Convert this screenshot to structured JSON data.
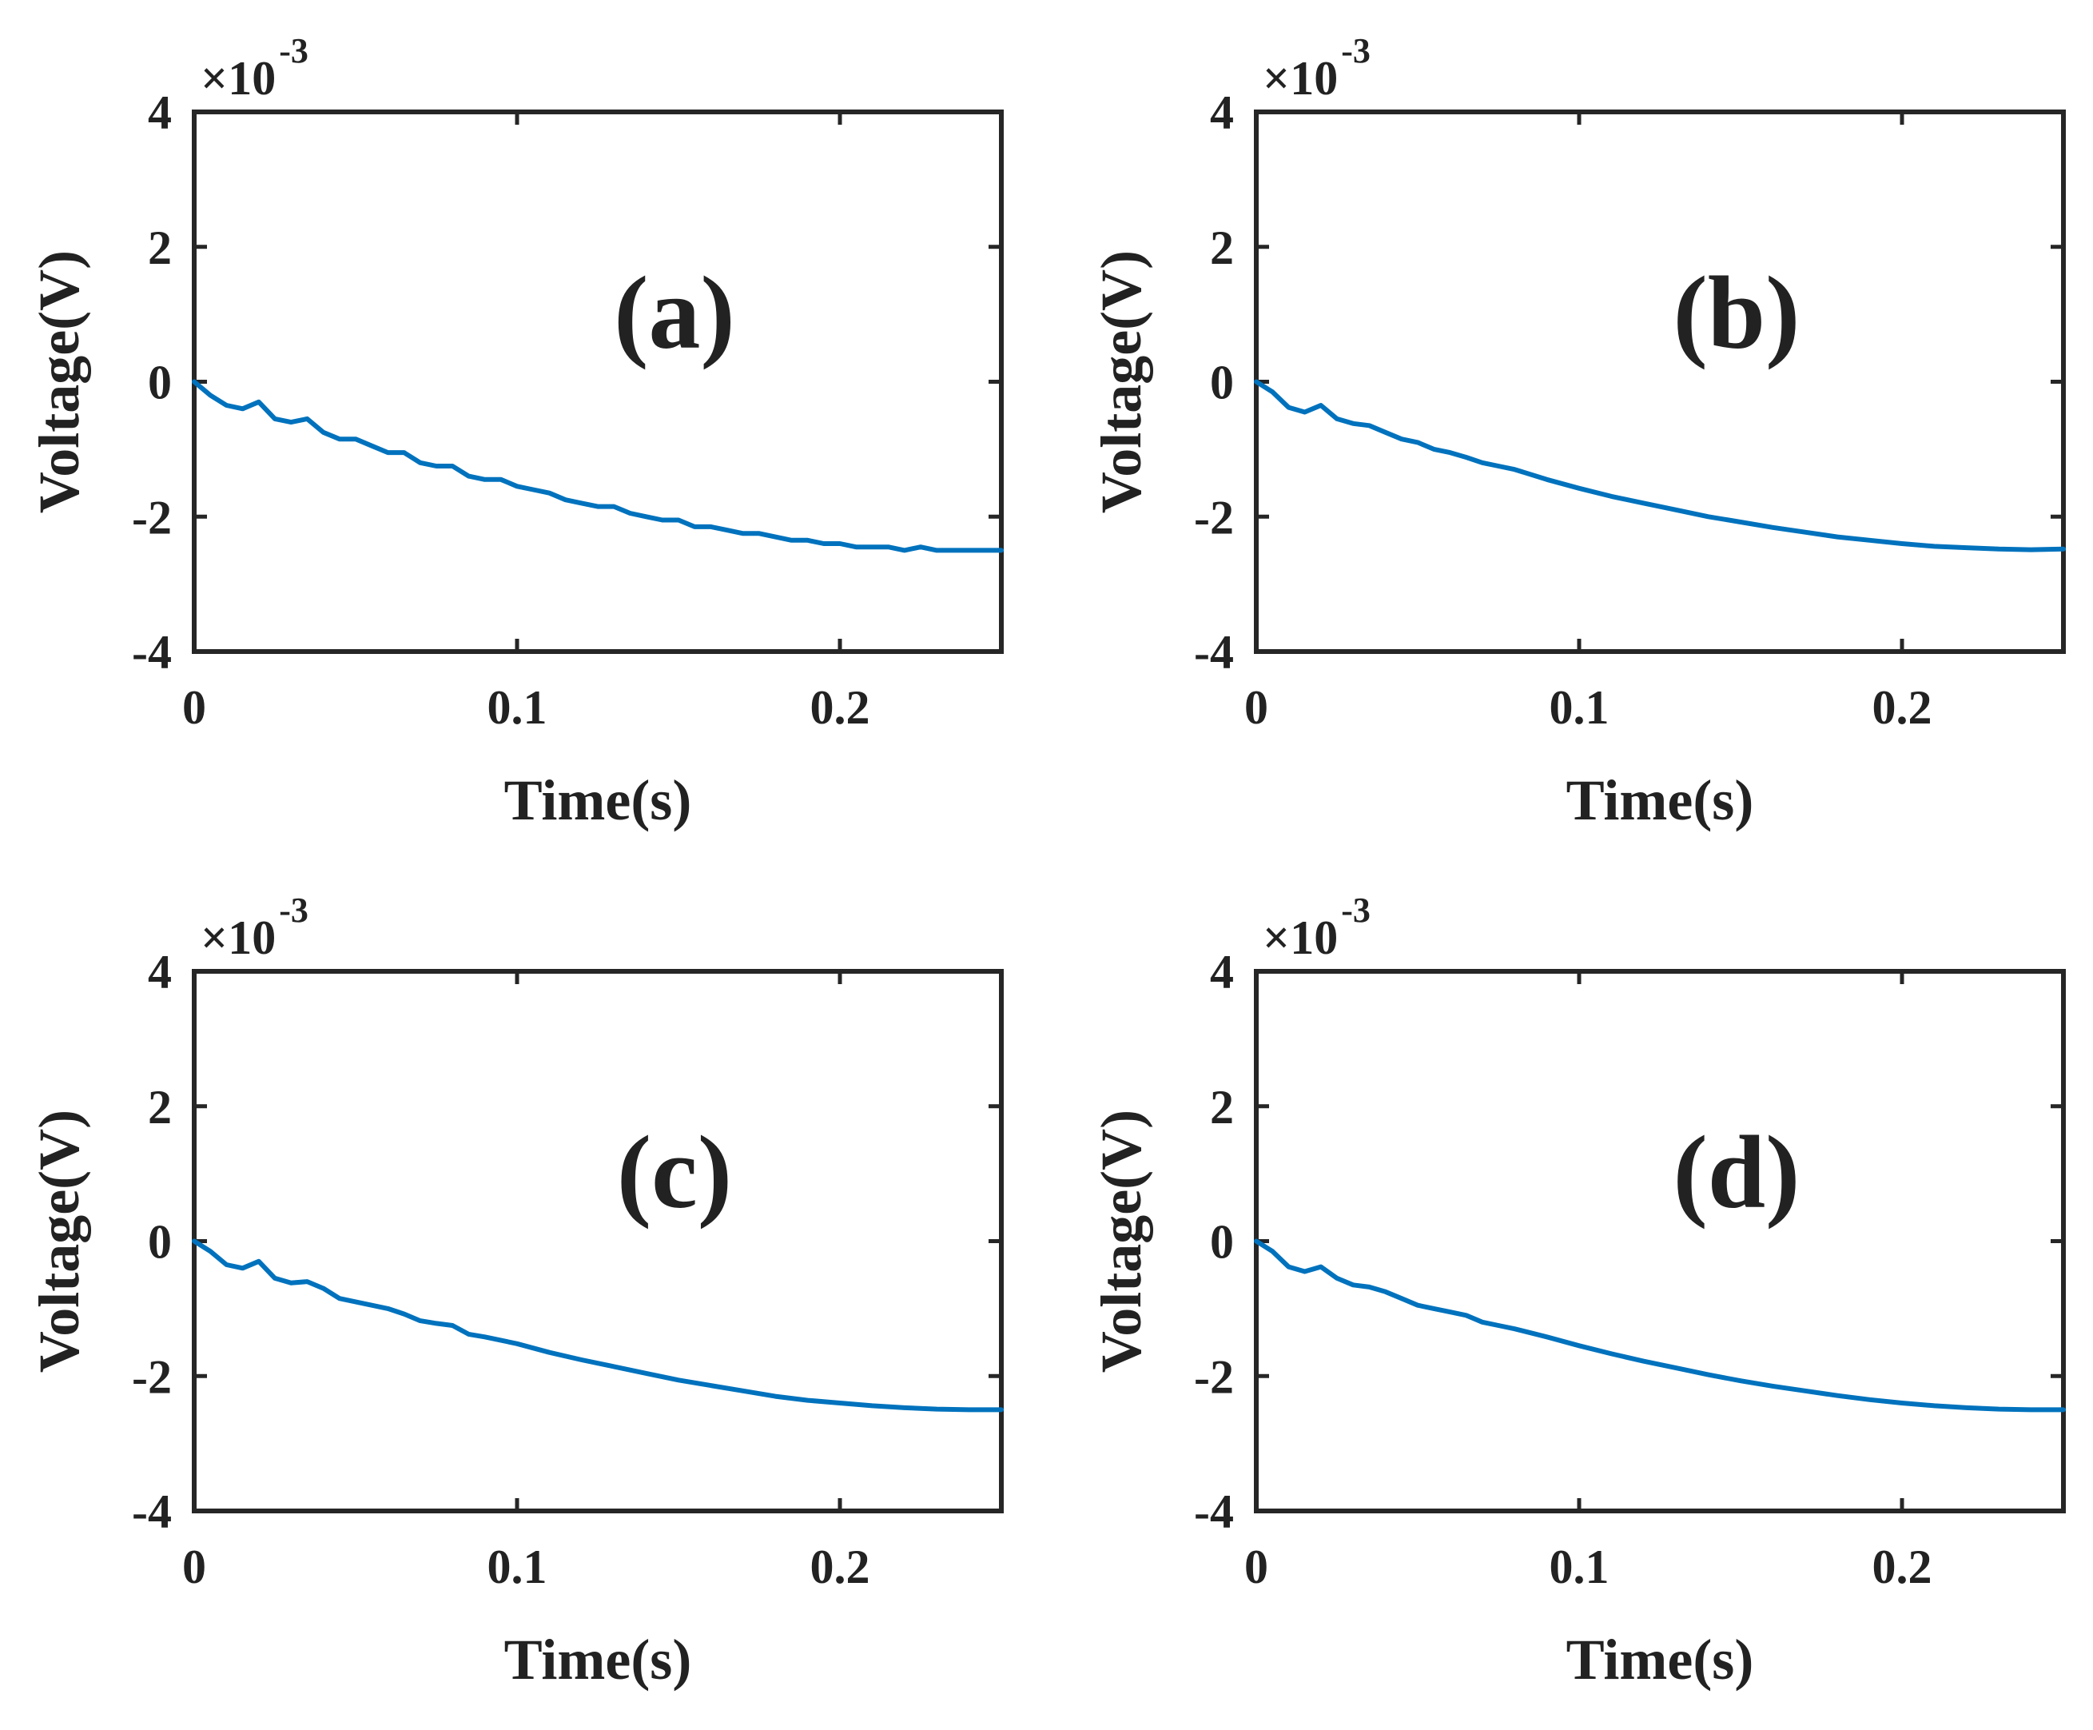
{
  "colors": {
    "series": "#0072BD",
    "axes": "#262626",
    "text": "#222222"
  },
  "chart_data": [
    {
      "type": "line",
      "panel_label": "(a)",
      "xlabel": "Time(s)",
      "ylabel": "Voltage(V)",
      "y_scale_base": "×10",
      "y_scale_exponent": "-3",
      "xlim": [
        0,
        0.25
      ],
      "ylim": [
        -4,
        4
      ],
      "xticks": [
        0,
        0.1,
        0.2
      ],
      "xtick_labels": [
        "0",
        "0.1",
        "0.2"
      ],
      "yticks": [
        4,
        2,
        0,
        -2,
        -4
      ],
      "ytick_labels": [
        "4",
        "2",
        "0",
        "-2",
        "-4"
      ],
      "series": [
        {
          "name": "voltage",
          "x": [
            0,
            0.005,
            0.01,
            0.015,
            0.02,
            0.025,
            0.03,
            0.035,
            0.04,
            0.045,
            0.05,
            0.055,
            0.06,
            0.065,
            0.07,
            0.075,
            0.08,
            0.085,
            0.09,
            0.095,
            0.1,
            0.105,
            0.11,
            0.115,
            0.12,
            0.125,
            0.13,
            0.135,
            0.14,
            0.145,
            0.15,
            0.155,
            0.16,
            0.165,
            0.17,
            0.175,
            0.18,
            0.185,
            0.19,
            0.195,
            0.2,
            0.205,
            0.21,
            0.215,
            0.22,
            0.225,
            0.23,
            0.235,
            0.24,
            0.245,
            0.25
          ],
          "y": [
            0,
            -0.2,
            -0.35,
            -0.4,
            -0.3,
            -0.55,
            -0.6,
            -0.55,
            -0.75,
            -0.85,
            -0.85,
            -0.95,
            -1.05,
            -1.05,
            -1.2,
            -1.25,
            -1.25,
            -1.4,
            -1.45,
            -1.45,
            -1.55,
            -1.6,
            -1.65,
            -1.75,
            -1.8,
            -1.85,
            -1.85,
            -1.95,
            -2.0,
            -2.05,
            -2.05,
            -2.15,
            -2.15,
            -2.2,
            -2.25,
            -2.25,
            -2.3,
            -2.35,
            -2.35,
            -2.4,
            -2.4,
            -2.45,
            -2.45,
            -2.45,
            -2.5,
            -2.45,
            -2.5,
            -2.5,
            -2.5,
            -2.5,
            -2.5
          ]
        }
      ]
    },
    {
      "type": "line",
      "panel_label": "(b)",
      "xlabel": "Time(s)",
      "ylabel": "Voltage(V)",
      "y_scale_base": "×10",
      "y_scale_exponent": "-3",
      "xlim": [
        0,
        0.25
      ],
      "ylim": [
        -4,
        4
      ],
      "xticks": [
        0,
        0.1,
        0.2
      ],
      "xtick_labels": [
        "0",
        "0.1",
        "0.2"
      ],
      "yticks": [
        4,
        2,
        0,
        -2,
        -4
      ],
      "ytick_labels": [
        "4",
        "2",
        "0",
        "-2",
        "-4"
      ],
      "series": [
        {
          "name": "voltage",
          "x": [
            0,
            0.005,
            0.01,
            0.015,
            0.02,
            0.025,
            0.03,
            0.035,
            0.04,
            0.045,
            0.05,
            0.055,
            0.06,
            0.065,
            0.07,
            0.075,
            0.08,
            0.09,
            0.1,
            0.11,
            0.12,
            0.13,
            0.14,
            0.15,
            0.16,
            0.17,
            0.18,
            0.19,
            0.2,
            0.21,
            0.22,
            0.23,
            0.24,
            0.25
          ],
          "y": [
            0,
            -0.15,
            -0.38,
            -0.45,
            -0.35,
            -0.55,
            -0.62,
            -0.65,
            -0.75,
            -0.85,
            -0.9,
            -1.0,
            -1.05,
            -1.12,
            -1.2,
            -1.25,
            -1.3,
            -1.45,
            -1.58,
            -1.7,
            -1.8,
            -1.9,
            -2.0,
            -2.08,
            -2.16,
            -2.23,
            -2.3,
            -2.35,
            -2.4,
            -2.44,
            -2.46,
            -2.48,
            -2.49,
            -2.48
          ]
        }
      ]
    },
    {
      "type": "line",
      "panel_label": "(c)",
      "xlabel": "Time(s)",
      "ylabel": "Voltage(V)",
      "y_scale_base": "×10",
      "y_scale_exponent": "-3",
      "xlim": [
        0,
        0.25
      ],
      "ylim": [
        -4,
        4
      ],
      "xticks": [
        0,
        0.1,
        0.2
      ],
      "xtick_labels": [
        "0",
        "0.1",
        "0.2"
      ],
      "yticks": [
        4,
        2,
        0,
        -2,
        -4
      ],
      "ytick_labels": [
        "4",
        "2",
        "0",
        "-2",
        "-4"
      ],
      "series": [
        {
          "name": "voltage",
          "x": [
            0,
            0.005,
            0.01,
            0.015,
            0.02,
            0.025,
            0.03,
            0.035,
            0.04,
            0.045,
            0.05,
            0.055,
            0.06,
            0.065,
            0.07,
            0.075,
            0.08,
            0.085,
            0.09,
            0.1,
            0.11,
            0.12,
            0.13,
            0.14,
            0.15,
            0.16,
            0.17,
            0.18,
            0.19,
            0.2,
            0.21,
            0.22,
            0.23,
            0.24,
            0.25
          ],
          "y": [
            0,
            -0.15,
            -0.35,
            -0.4,
            -0.3,
            -0.55,
            -0.62,
            -0.6,
            -0.7,
            -0.85,
            -0.9,
            -0.95,
            -1.0,
            -1.08,
            -1.18,
            -1.22,
            -1.25,
            -1.38,
            -1.42,
            -1.52,
            -1.65,
            -1.76,
            -1.86,
            -1.96,
            -2.06,
            -2.14,
            -2.22,
            -2.3,
            -2.36,
            -2.4,
            -2.44,
            -2.47,
            -2.49,
            -2.5,
            -2.5
          ]
        }
      ]
    },
    {
      "type": "line",
      "panel_label": "(d)",
      "xlabel": "Time(s)",
      "ylabel": "Voltage(V)",
      "y_scale_base": "×10",
      "y_scale_exponent": "-3",
      "xlim": [
        0,
        0.25
      ],
      "ylim": [
        -4,
        4
      ],
      "xticks": [
        0,
        0.1,
        0.2
      ],
      "xtick_labels": [
        "0",
        "0.1",
        "0.2"
      ],
      "yticks": [
        4,
        2,
        0,
        -2,
        -4
      ],
      "ytick_labels": [
        "4",
        "2",
        "0",
        "-2",
        "-4"
      ],
      "series": [
        {
          "name": "voltage",
          "x": [
            0,
            0.005,
            0.01,
            0.015,
            0.02,
            0.025,
            0.03,
            0.035,
            0.04,
            0.045,
            0.05,
            0.055,
            0.06,
            0.065,
            0.07,
            0.075,
            0.08,
            0.09,
            0.1,
            0.11,
            0.12,
            0.13,
            0.14,
            0.15,
            0.16,
            0.17,
            0.18,
            0.19,
            0.2,
            0.21,
            0.22,
            0.23,
            0.24,
            0.25
          ],
          "y": [
            0,
            -0.15,
            -0.38,
            -0.45,
            -0.38,
            -0.55,
            -0.65,
            -0.68,
            -0.75,
            -0.85,
            -0.95,
            -1.0,
            -1.05,
            -1.1,
            -1.2,
            -1.25,
            -1.3,
            -1.42,
            -1.55,
            -1.67,
            -1.78,
            -1.88,
            -1.98,
            -2.07,
            -2.15,
            -2.22,
            -2.29,
            -2.35,
            -2.4,
            -2.44,
            -2.47,
            -2.49,
            -2.5,
            -2.5
          ]
        }
      ]
    }
  ]
}
